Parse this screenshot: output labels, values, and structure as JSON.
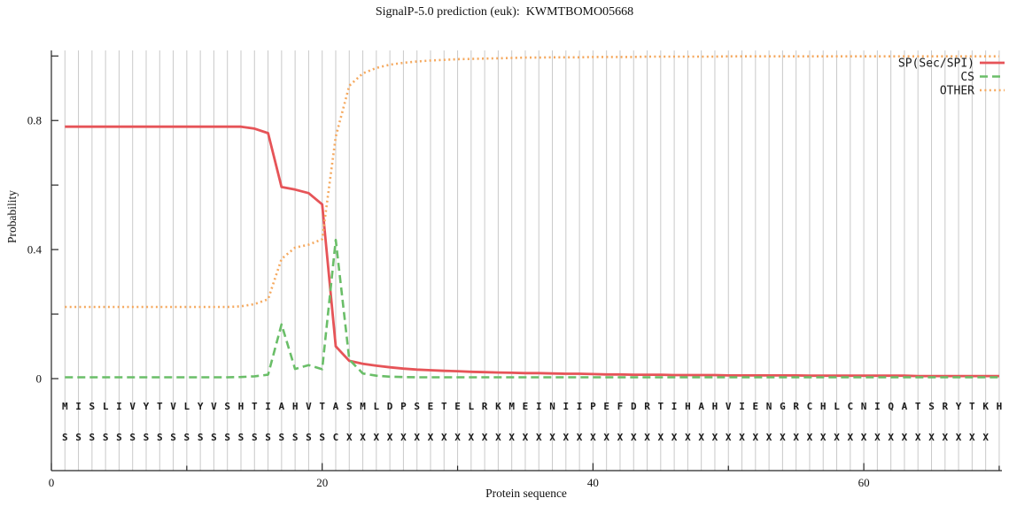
{
  "title": "SignalP-5.0 prediction (euk):  KWMTBOMO05668",
  "chart_data": {
    "type": "line",
    "title": "SignalP-5.0 prediction (euk):  KWMTBOMO05668",
    "xlabel": "Protein sequence",
    "ylabel": "Probability",
    "xlim": [
      0,
      70.2
    ],
    "ylim": [
      0,
      1.0
    ],
    "x_ticks_major": [
      0,
      20,
      40,
      60
    ],
    "x_ticks_minor": [
      10,
      30,
      50,
      70
    ],
    "y_ticks": [
      0,
      0.2,
      0.4,
      0.6,
      0.8,
      1.0
    ],
    "y_ticks_labeled": [
      0,
      0.4,
      0.8
    ],
    "grid": "vertical-line-per-residue",
    "grid_color": "#c9c9c9",
    "axis_color": "#262626",
    "legend_position": "top-right",
    "x": "residue positions 1-70",
    "series": [
      {
        "name": "SP(Sec/SPI)",
        "color": "#e65458",
        "style": "solid",
        "values": [
          0.781,
          0.781,
          0.781,
          0.781,
          0.781,
          0.781,
          0.781,
          0.781,
          0.781,
          0.781,
          0.781,
          0.781,
          0.781,
          0.781,
          0.775,
          0.761,
          0.594,
          0.586,
          0.575,
          0.54,
          0.1,
          0.055,
          0.046,
          0.04,
          0.035,
          0.031,
          0.028,
          0.026,
          0.024,
          0.023,
          0.021,
          0.02,
          0.019,
          0.018,
          0.017,
          0.017,
          0.016,
          0.015,
          0.015,
          0.014,
          0.013,
          0.013,
          0.012,
          0.012,
          0.012,
          0.011,
          0.011,
          0.011,
          0.011,
          0.01,
          0.01,
          0.01,
          0.01,
          0.01,
          0.01,
          0.009,
          0.009,
          0.009,
          0.009,
          0.009,
          0.009,
          0.009,
          0.009,
          0.008,
          0.008,
          0.008,
          0.008,
          0.008,
          0.008,
          0.008
        ]
      },
      {
        "name": "CS",
        "color": "#6abe68",
        "style": "dashed",
        "values": [
          0.004,
          0.004,
          0.004,
          0.004,
          0.004,
          0.004,
          0.004,
          0.004,
          0.004,
          0.004,
          0.004,
          0.004,
          0.004,
          0.005,
          0.007,
          0.012,
          0.168,
          0.03,
          0.042,
          0.029,
          0.43,
          0.059,
          0.016,
          0.009,
          0.006,
          0.005,
          0.004,
          0.004,
          0.004,
          0.004,
          0.004,
          0.004,
          0.004,
          0.004,
          0.004,
          0.004,
          0.004,
          0.004,
          0.004,
          0.004,
          0.004,
          0.004,
          0.004,
          0.004,
          0.004,
          0.004,
          0.004,
          0.004,
          0.004,
          0.004,
          0.004,
          0.004,
          0.004,
          0.004,
          0.004,
          0.004,
          0.004,
          0.004,
          0.004,
          0.004,
          0.004,
          0.004,
          0.004,
          0.004,
          0.004,
          0.004,
          0.004,
          0.004,
          0.004,
          0.004
        ]
      },
      {
        "name": "OTHER",
        "color": "#f5a95f",
        "style": "dotted",
        "values": [
          0.222,
          0.222,
          0.222,
          0.222,
          0.222,
          0.222,
          0.222,
          0.222,
          0.222,
          0.222,
          0.222,
          0.222,
          0.222,
          0.224,
          0.231,
          0.246,
          0.371,
          0.406,
          0.415,
          0.432,
          0.75,
          0.908,
          0.946,
          0.963,
          0.973,
          0.979,
          0.983,
          0.986,
          0.988,
          0.99,
          0.991,
          0.992,
          0.993,
          0.994,
          0.995,
          0.995,
          0.996,
          0.996,
          0.996,
          0.997,
          0.997,
          0.997,
          0.997,
          0.998,
          0.998,
          0.998,
          0.998,
          0.998,
          0.998,
          0.999,
          0.999,
          0.999,
          0.999,
          0.999,
          0.999,
          0.999,
          0.999,
          0.999,
          0.999,
          0.999,
          0.999,
          0.999,
          0.999,
          0.999,
          0.999,
          0.999,
          0.999,
          0.999,
          0.999,
          0.999
        ]
      }
    ],
    "sequence": "MISLIVYTVLYVSHTIAHVTASMLDPSETELRKMEINIIPEFDRTIHAHVIENGRCHLCNIQATSRYTKH",
    "annotation": "SSSSSSSSSSSSSSSSSSSSCXXXXXXXXXXXXXXXXXXXXXXXXXXXXXXXXXXXXXXXXXXXXXXXX"
  }
}
